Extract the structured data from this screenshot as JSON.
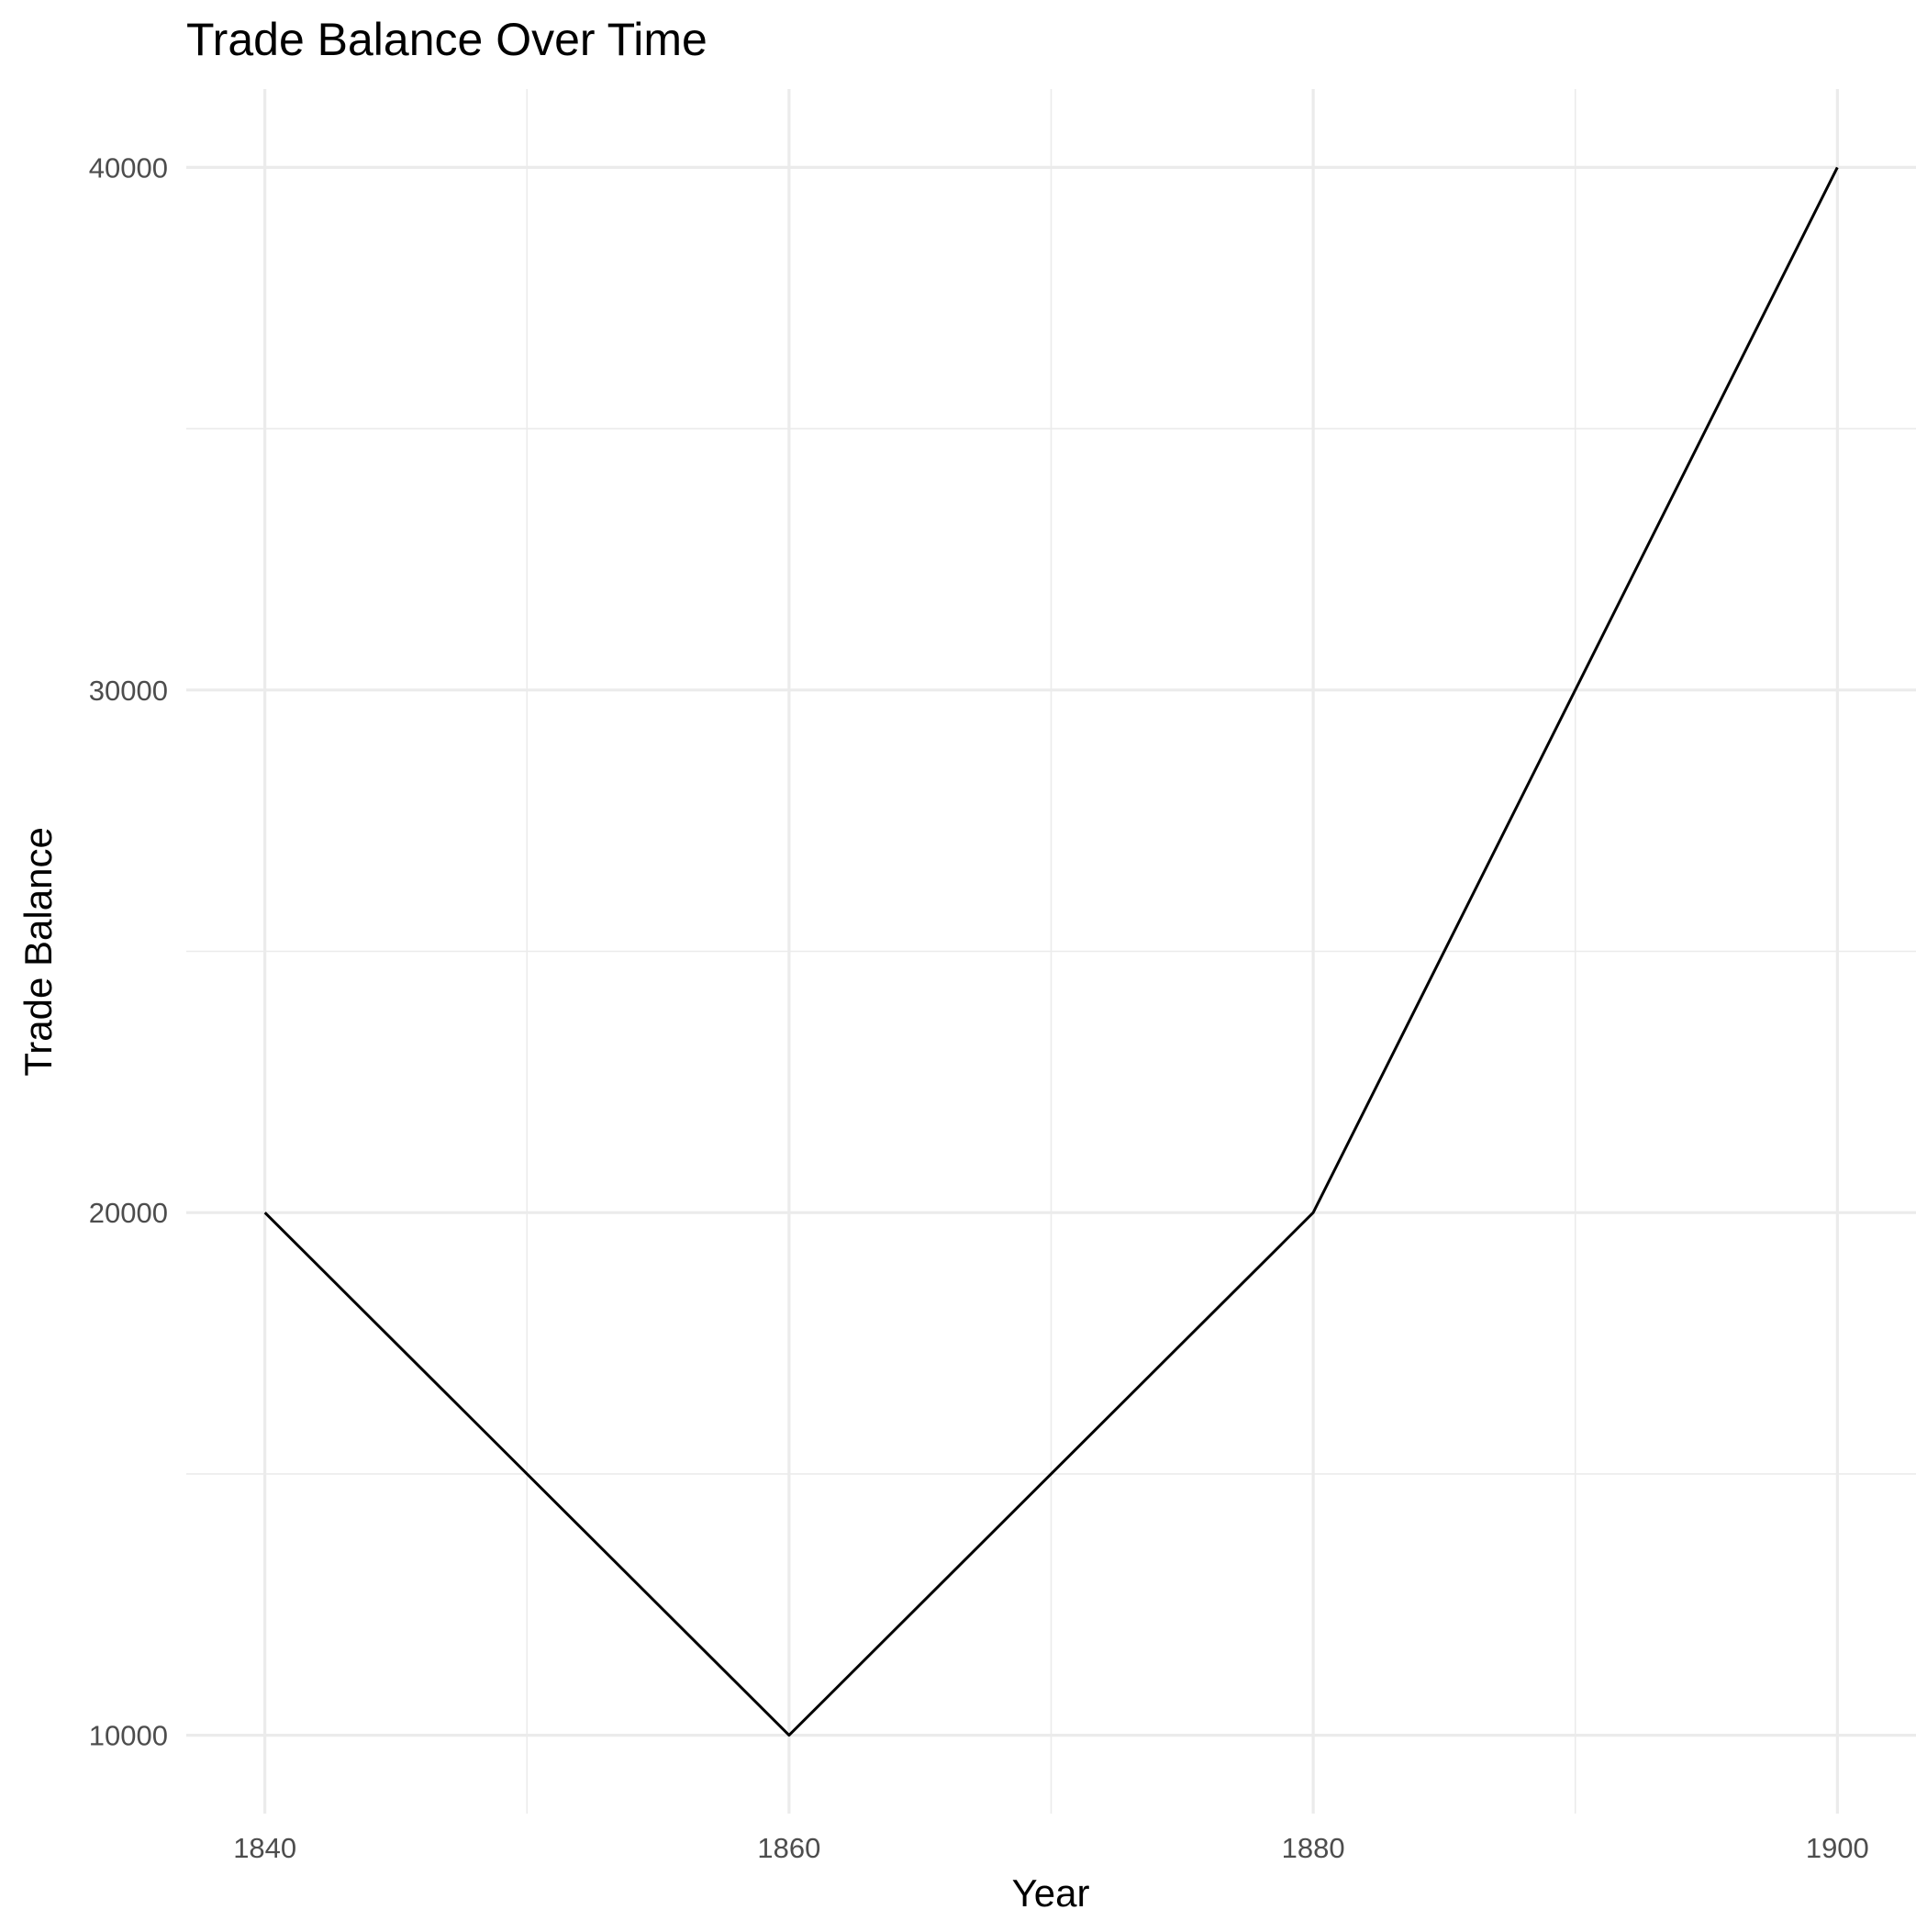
{
  "chart_data": {
    "type": "line",
    "title": "Trade Balance Over Time",
    "xlabel": "Year",
    "ylabel": "Trade Balance",
    "x": [
      1840,
      1860,
      1880,
      1900
    ],
    "series": [
      {
        "values": [
          20000,
          10000,
          20000,
          40000
        ]
      }
    ],
    "xlim": [
      1837,
      1903
    ],
    "ylim": [
      8500,
      41500
    ],
    "x_ticks": [
      1840,
      1860,
      1880,
      1900
    ],
    "x_tick_labels": [
      "1840",
      "1860",
      "1880",
      "1900"
    ],
    "y_ticks": [
      10000,
      20000,
      30000,
      40000
    ],
    "y_tick_labels": [
      "10000",
      "20000",
      "30000",
      "40000"
    ],
    "x_minor_ticks": [
      1850,
      1870,
      1890
    ],
    "y_minor_ticks": [
      15000,
      25000,
      35000
    ],
    "grid": true,
    "legend": "none",
    "line_color": "#000000",
    "grid_color": "#ebebeb",
    "tick_label_color": "#4d4d4d",
    "background": "#ffffff"
  }
}
